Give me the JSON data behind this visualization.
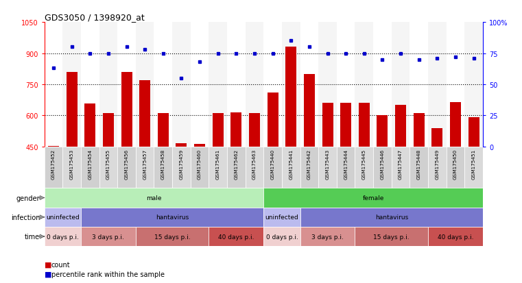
{
  "title": "GDS3050 / 1398920_at",
  "samples": [
    "GSM175452",
    "GSM175453",
    "GSM175454",
    "GSM175455",
    "GSM175456",
    "GSM175457",
    "GSM175458",
    "GSM175459",
    "GSM175460",
    "GSM175461",
    "GSM175462",
    "GSM175463",
    "GSM175440",
    "GSM175441",
    "GSM175442",
    "GSM175443",
    "GSM175444",
    "GSM175445",
    "GSM175446",
    "GSM175447",
    "GSM175448",
    "GSM175449",
    "GSM175450",
    "GSM175451"
  ],
  "counts": [
    453,
    810,
    658,
    610,
    810,
    770,
    610,
    467,
    462,
    610,
    615,
    610,
    710,
    930,
    800,
    660,
    660,
    660,
    600,
    650,
    610,
    540,
    665,
    590
  ],
  "percentiles": [
    63,
    80,
    75,
    75,
    80,
    78,
    75,
    55,
    68,
    75,
    75,
    75,
    75,
    85,
    80,
    75,
    75,
    75,
    70,
    75,
    70,
    71,
    72,
    71
  ],
  "ylim_left": [
    450,
    1050
  ],
  "ylim_right": [
    0,
    100
  ],
  "yticks_left": [
    450,
    600,
    750,
    900,
    1050
  ],
  "yticks_right": [
    0,
    25,
    50,
    75,
    100
  ],
  "bar_color": "#cc0000",
  "dot_color": "#0000cc",
  "plot_bg": "#ffffff",
  "fig_bg": "#ffffff",
  "tick_label_bg": "#d8d8d8",
  "gender_male_color": "#b8eeb8",
  "gender_female_color": "#55cc55",
  "infection_uninfected_color": "#bbbbee",
  "infection_hantavirus_color": "#7777cc",
  "time_0_color": "#f0d0d0",
  "time_3_color": "#d89090",
  "time_15_color": "#c87070",
  "time_40_color": "#c85050",
  "gender_segments": [
    {
      "label": "male",
      "start": 0,
      "end": 12
    },
    {
      "label": "female",
      "start": 12,
      "end": 24
    }
  ],
  "infection_segments": [
    {
      "label": "uninfected",
      "start": 0,
      "end": 2
    },
    {
      "label": "hantavirus",
      "start": 2,
      "end": 12
    },
    {
      "label": "uninfected",
      "start": 12,
      "end": 14
    },
    {
      "label": "hantavirus",
      "start": 14,
      "end": 24
    }
  ],
  "time_segments": [
    {
      "label": "0 days p.i.",
      "start": 0,
      "end": 2,
      "shade": 0
    },
    {
      "label": "3 days p.i.",
      "start": 2,
      "end": 5,
      "shade": 1
    },
    {
      "label": "15 days p.i.",
      "start": 5,
      "end": 9,
      "shade": 2
    },
    {
      "label": "40 days p.i.",
      "start": 9,
      "end": 12,
      "shade": 3
    },
    {
      "label": "0 days p.i.",
      "start": 12,
      "end": 14,
      "shade": 0
    },
    {
      "label": "3 days p.i.",
      "start": 14,
      "end": 17,
      "shade": 1
    },
    {
      "label": "15 days p.i.",
      "start": 17,
      "end": 21,
      "shade": 2
    },
    {
      "label": "40 days p.i.",
      "start": 21,
      "end": 24,
      "shade": 3
    }
  ],
  "legend_items": [
    {
      "label": "count",
      "color": "#cc0000"
    },
    {
      "label": "percentile rank within the sample",
      "color": "#0000cc"
    }
  ]
}
